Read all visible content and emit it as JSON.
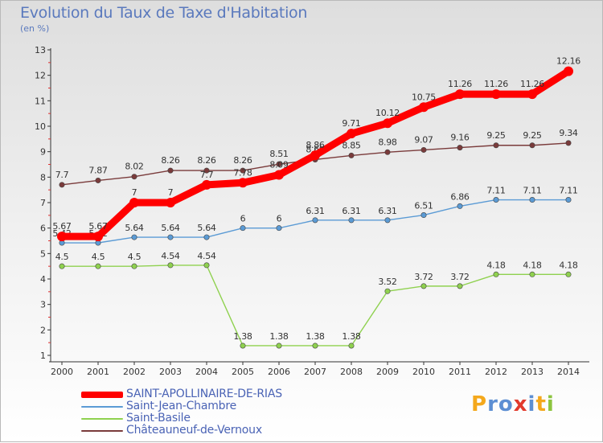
{
  "header": {
    "title": "Evolution du Taux de Taxe d'Habitation",
    "subtitle": "(en %)"
  },
  "logo": {
    "text": "Proxiti",
    "letters": [
      {
        "ch": "P",
        "color": "#f4a81c"
      },
      {
        "ch": "r",
        "color": "#5d8fd3"
      },
      {
        "ch": "o",
        "color": "#5d8fd3"
      },
      {
        "ch": "x",
        "color": "#e23a2c"
      },
      {
        "ch": "i",
        "color": "#5d8fd3"
      },
      {
        "ch": "t",
        "color": "#f4a81c"
      },
      {
        "ch": "i",
        "color": "#8cc43f"
      }
    ]
  },
  "chart_data": {
    "type": "line",
    "title": "Evolution du Taux de Taxe d'Habitation",
    "subtitle": "(en %)",
    "xlabel": "",
    "ylabel": "",
    "x": [
      "2000",
      "2001",
      "2002",
      "2003",
      "2004",
      "2005",
      "2006",
      "2007",
      "2008",
      "2009",
      "2010",
      "2011",
      "2012",
      "2013",
      "2014"
    ],
    "ylim": [
      1,
      13
    ],
    "yticks": [
      "1",
      "2",
      "3",
      "4",
      "5",
      "6",
      "7",
      "8",
      "9",
      "10",
      "11",
      "12",
      "13"
    ],
    "grid": false,
    "legend_position": "bottom-left",
    "series": [
      {
        "name": "SAINT-APOLLINAIRE-DE-RIAS",
        "color": "#ff0000",
        "emphasis": "thick",
        "values": [
          5.67,
          5.67,
          7,
          7,
          7.7,
          7.78,
          8.09,
          8.86,
          9.71,
          10.12,
          10.75,
          11.26,
          11.26,
          11.26,
          12.16
        ],
        "labels": [
          "5.67",
          "5.67",
          "7",
          "7",
          "7.7",
          "7.78",
          "8.09",
          "8.86",
          "9.71",
          "10.12",
          "10.75",
          "11.26",
          "11.26",
          "11.26",
          "12.16"
        ]
      },
      {
        "name": "Saint-Jean-Chambre",
        "color": "#5b9bd5",
        "values": [
          5.42,
          5.42,
          5.64,
          5.64,
          5.64,
          6,
          6,
          6.31,
          6.31,
          6.31,
          6.51,
          6.86,
          7.11,
          7.11,
          7.11
        ],
        "labels": [
          "5.42",
          "5.42",
          "5.64",
          "5.64",
          "5.64",
          "6",
          "6",
          "6.31",
          "6.31",
          "6.31",
          "6.51",
          "6.86",
          "7.11",
          "7.11",
          "7.11"
        ]
      },
      {
        "name": "Saint-Basile",
        "color": "#8fd14f",
        "values": [
          4.5,
          4.5,
          4.5,
          4.54,
          4.54,
          1.38,
          1.38,
          1.38,
          1.38,
          3.52,
          3.72,
          3.72,
          4.18,
          4.18,
          4.18
        ],
        "labels": [
          "4.5",
          "4.5",
          "4.5",
          "4.54",
          "4.54",
          "1.38",
          "1.38",
          "1.38",
          "1.38",
          "3.52",
          "3.72",
          "3.72",
          "4.18",
          "4.18",
          "4.18"
        ]
      },
      {
        "name": "Châteauneuf-de-Vernoux",
        "color": "#7a3b3b",
        "values": [
          7.7,
          7.87,
          8.02,
          8.26,
          8.26,
          8.26,
          8.51,
          8.69,
          8.85,
          8.98,
          9.07,
          9.16,
          9.25,
          9.25,
          9.34
        ],
        "labels": [
          "7.7",
          "7.87",
          "8.02",
          "8.26",
          "8.26",
          "8.26",
          "8.51",
          "8.69",
          "8.85",
          "8.98",
          "9.07",
          "9.16",
          "9.25",
          "9.25",
          "9.34"
        ]
      }
    ]
  }
}
